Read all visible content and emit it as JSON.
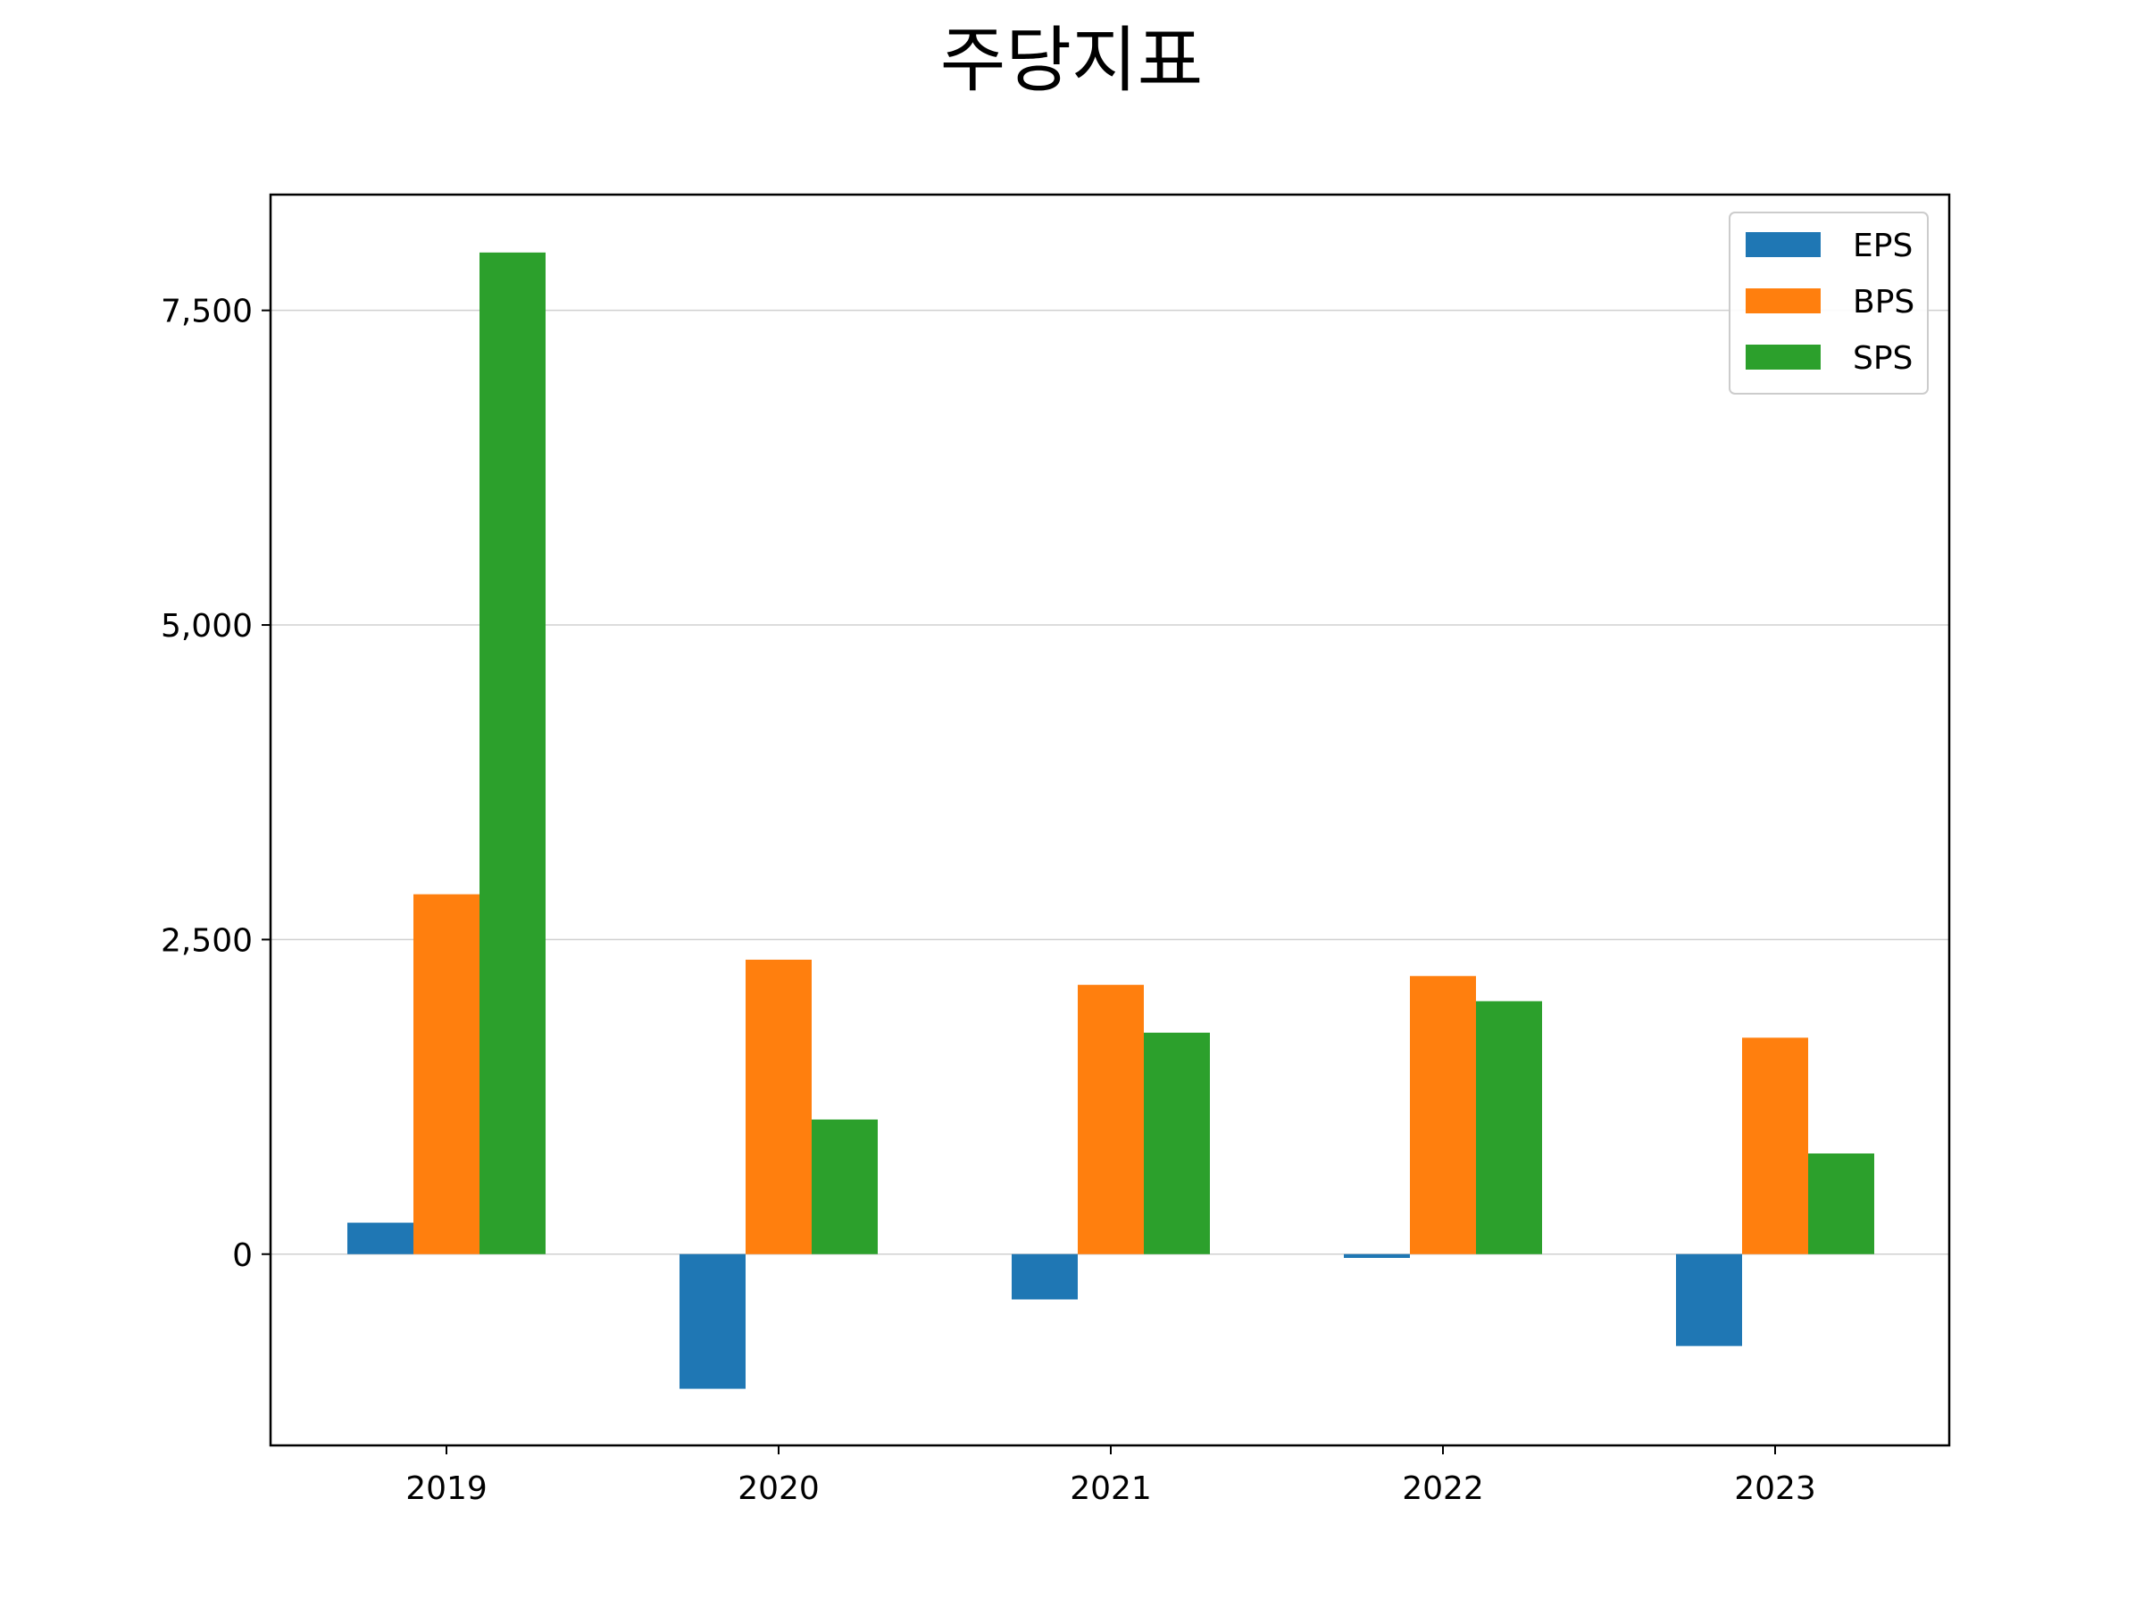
{
  "chart_data": {
    "type": "bar",
    "title": "주당지표",
    "xlabel": "",
    "ylabel": "",
    "categories": [
      "2019",
      "2020",
      "2021",
      "2022",
      "2023"
    ],
    "series": [
      {
        "name": "EPS",
        "color": "#1f77b4",
        "values": [
          250,
          -1070,
          -360,
          -30,
          -730
        ]
      },
      {
        "name": "BPS",
        "color": "#ff7f0e",
        "values": [
          2860,
          2340,
          2140,
          2210,
          1720
        ]
      },
      {
        "name": "SPS",
        "color": "#2ca02c",
        "values": [
          7960,
          1070,
          1760,
          2010,
          800
        ]
      }
    ],
    "yticks": [
      0,
      2500,
      5000,
      7500
    ],
    "ytick_labels": [
      "0",
      "2,500",
      "5,000",
      "7,500"
    ],
    "ylim": [
      -1520,
      8420
    ],
    "grid": "horizontal",
    "legend": "top-right"
  }
}
